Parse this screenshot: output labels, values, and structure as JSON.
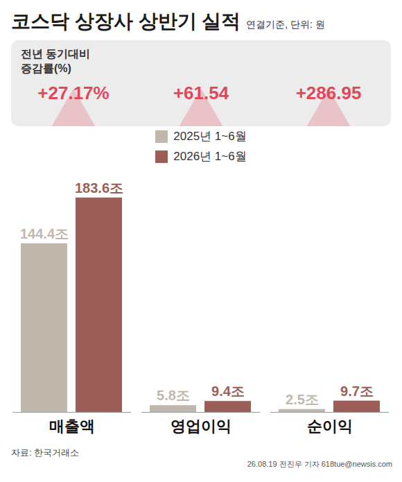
{
  "chart_data": {
    "type": "bar",
    "title": "코스닥 상장사 상반기 실적",
    "subtitle": "연결기준, 단위: 원",
    "categories": [
      "매출액",
      "영업이익",
      "순이익"
    ],
    "series": [
      {
        "name": "2025년 1~6월",
        "color": "#c2b7ad",
        "values": [
          144.4,
          5.8,
          2.5
        ],
        "value_labels": [
          "144.4조",
          "5.8조",
          "2.5조"
        ]
      },
      {
        "name": "2026년 1~6월",
        "color": "#9b5f57",
        "values": [
          183.6,
          9.4,
          9.7
        ],
        "value_labels": [
          "183.6조",
          "9.4조",
          "9.7조"
        ]
      }
    ],
    "ylim": [
      0,
      190
    ],
    "tick_labels": "x",
    "data_labels": true,
    "legend": "top",
    "change_rate": {
      "title": "전년 동기대비 증감률(%)",
      "values": [
        27.17,
        61.54,
        286.95
      ],
      "value_labels": [
        "+27.17%",
        "+61.54",
        "+286.95"
      ],
      "color": "#e0485a"
    },
    "source": "자료: 한국거래소",
    "credit": "26.08.19 전진우 기자 618tue@newsis.com"
  }
}
